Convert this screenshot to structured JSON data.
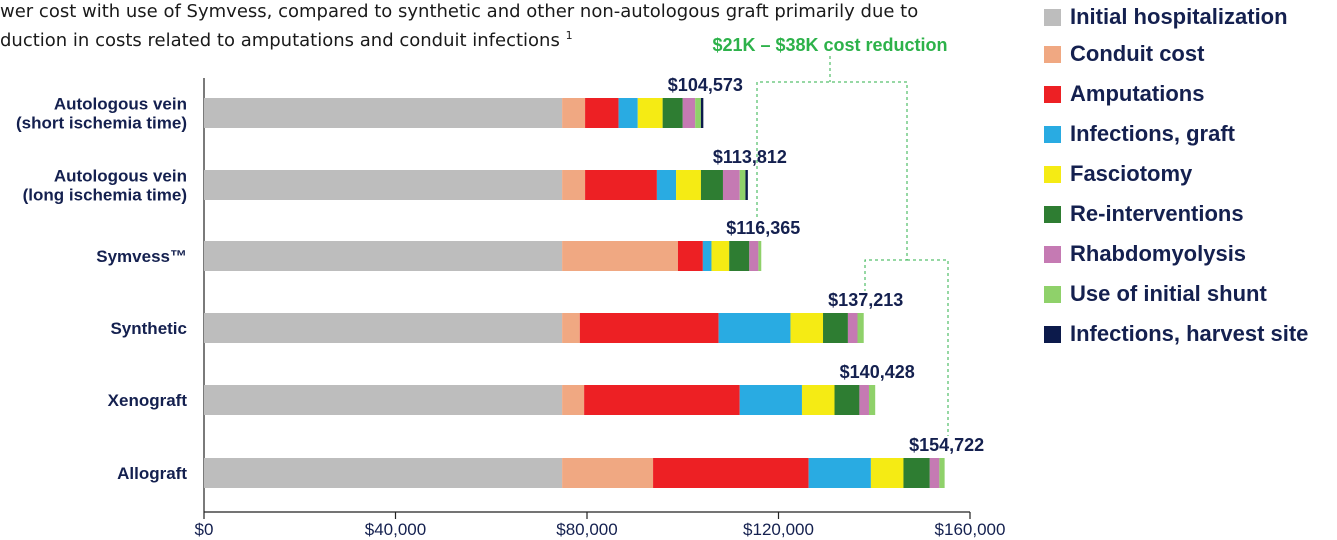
{
  "subtitle": {
    "line1": "wer cost with use of Symvess, compared to synthetic and other non-autologous graft primarily due to",
    "line2": "duction in costs related to amputations and conduit infections",
    "footnote": "1"
  },
  "chart_data": {
    "type": "bar",
    "orientation": "horizontal",
    "stacked": true,
    "categories": [
      "Autologous vein (short ischemia time)",
      "Autologous vein (long ischemia time)",
      "Symvess™",
      "Synthetic",
      "Xenograft",
      "Allograft"
    ],
    "category_lines": [
      [
        "Autologous vein",
        "(short ischemia time)"
      ],
      [
        "Autologous vein",
        "(long ischemia time)"
      ],
      [
        "Symvess™"
      ],
      [
        "Synthetic"
      ],
      [
        "Xenograft"
      ],
      [
        "Allograft"
      ]
    ],
    "totals_labels": [
      "$104,573",
      "$113,812",
      "$116,365",
      "$137,213",
      "$140,428",
      "$154,722"
    ],
    "series": [
      {
        "name": "Initial hospitalization",
        "color": "#bdbdbd",
        "values": [
          74800,
          74800,
          74800,
          74800,
          74800,
          74800
        ]
      },
      {
        "name": "Conduit cost",
        "color": "#f0a882",
        "values": [
          4800,
          4800,
          24200,
          3700,
          4600,
          19000
        ]
      },
      {
        "name": "Amputations",
        "color": "#ed2024",
        "values": [
          7000,
          15000,
          5200,
          29000,
          32500,
          32500
        ]
      },
      {
        "name": "Infections, graft",
        "color": "#29abe2",
        "values": [
          4000,
          4000,
          1800,
          15000,
          13000,
          13000
        ]
      },
      {
        "name": "Fasciotomy",
        "color": "#f5eb14",
        "values": [
          5200,
          5200,
          3700,
          6800,
          6800,
          6800
        ]
      },
      {
        "name": "Re-interventions",
        "color": "#2e7d32",
        "values": [
          4200,
          4600,
          4200,
          5200,
          5200,
          5500
        ]
      },
      {
        "name": "Rhabdomyolysis",
        "color": "#c57ab3",
        "values": [
          2600,
          3500,
          1900,
          2000,
          2000,
          2000
        ]
      },
      {
        "name": "Use of initial shunt",
        "color": "#8fd16a",
        "values": [
          1200,
          1200,
          600,
          1300,
          1300,
          1100
        ]
      },
      {
        "name": "Infections, harvest site",
        "color": "#0c1a4b",
        "values": [
          500,
          500,
          0,
          0,
          0,
          0
        ]
      }
    ],
    "x_ticks": [
      0,
      40000,
      80000,
      120000,
      160000
    ],
    "x_tick_labels": [
      "$0",
      "$40,000",
      "$80,000",
      "$120,000",
      "$160,000"
    ],
    "xlim": [
      0,
      160000
    ],
    "annotation": {
      "text": "$21K – $38K cost reduction",
      "color": "#2db24a",
      "from_category": "Symvess™",
      "to_categories": [
        "Synthetic",
        "Allograft"
      ]
    },
    "legend_position": "right"
  }
}
